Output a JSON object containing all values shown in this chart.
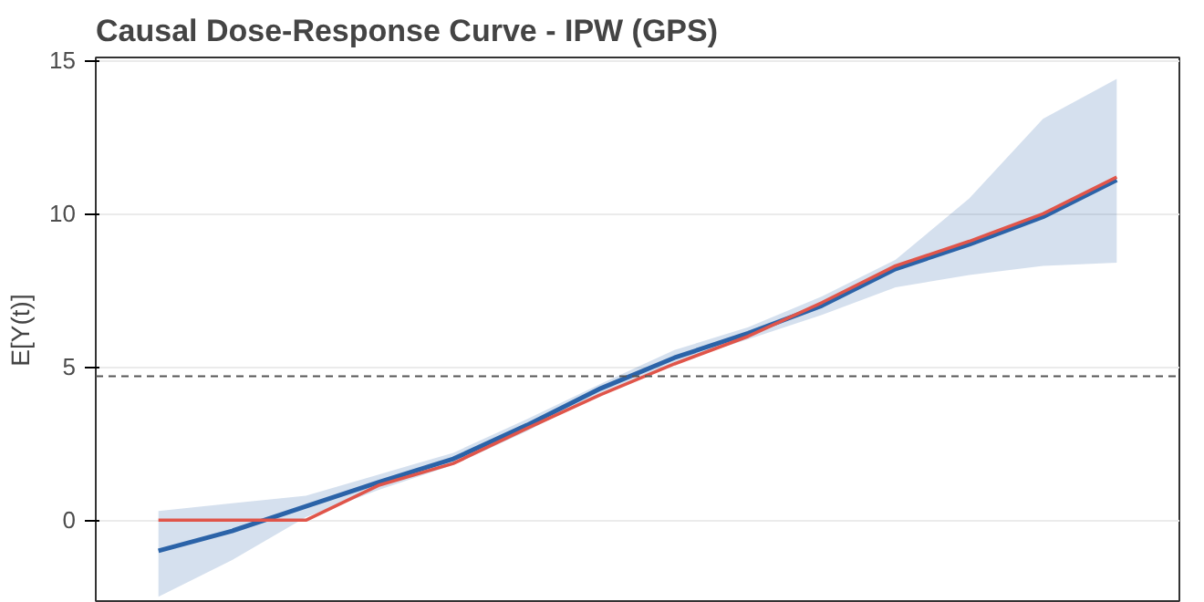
{
  "chart_data": {
    "type": "line",
    "title": "Causal Dose-Response Curve - IPW (GPS)",
    "ylabel": "E[Y(t)]",
    "categories": [
      null,
      null,
      null,
      null,
      null,
      null,
      null,
      null,
      null,
      null,
      null,
      null,
      null,
      null
    ],
    "series": [
      {
        "color": "#2b63a8",
        "values": [
          -1.0,
          -0.35,
          0.45,
          1.25,
          2.0,
          3.1,
          4.3,
          5.3,
          6.1,
          7.0,
          8.2,
          9.0,
          9.9,
          11.1
        ],
        "lower": [
          -2.5,
          -1.3,
          0.1,
          1.0,
          1.8,
          2.9,
          4.15,
          5.15,
          5.9,
          6.7,
          7.6,
          8.0,
          8.3,
          8.4
        ],
        "upper": [
          0.3,
          0.55,
          0.8,
          1.5,
          2.2,
          3.3,
          4.45,
          5.55,
          6.3,
          7.3,
          8.5,
          10.5,
          13.1,
          14.4
        ]
      },
      {
        "color": "#e0554a",
        "values": [
          0,
          0,
          0,
          1.15,
          1.85,
          3.0,
          4.1,
          5.1,
          6.0,
          7.1,
          8.3,
          9.1,
          10.0,
          11.2
        ]
      }
    ],
    "ylim": [
      -2.7,
      15.1
    ],
    "yticks": [
      0,
      5,
      10,
      15
    ],
    "grid": "y",
    "ref_lines": [
      {
        "axis": "y",
        "value": 4.7,
        "color": "#555555",
        "line_style": "dashed"
      }
    ]
  }
}
